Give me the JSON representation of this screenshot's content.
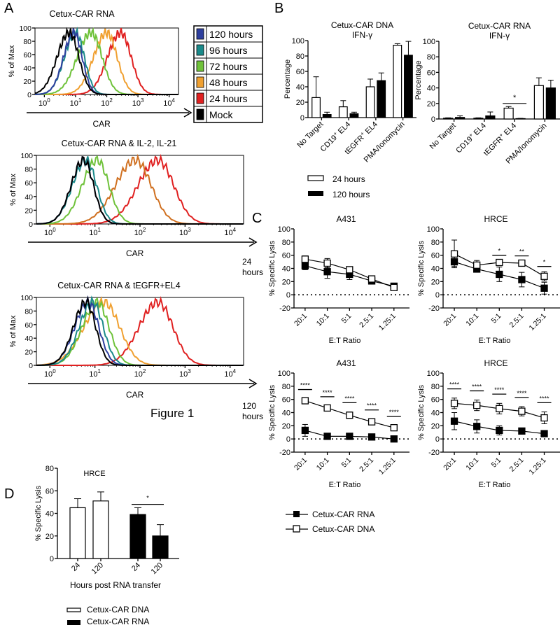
{
  "figure_label": "Figure 1",
  "panel_labels": {
    "A": "A",
    "B": "B",
    "C": "C",
    "D": "D"
  },
  "chart_data": [
    {
      "id": "A1",
      "type": "histogram-overlay",
      "title": "Cetux-CAR RNA",
      "xlabel": "CAR",
      "ylabel": "% of Max",
      "xscale": "log",
      "xlim_log10": [
        -0.3,
        4.3
      ],
      "yticks": [
        0,
        20,
        40,
        60,
        80,
        100
      ],
      "xticks": [
        "10^0",
        "10^1",
        "10^2",
        "10^3",
        "10^4"
      ],
      "series": [
        {
          "name": "Mock",
          "color": "#000000",
          "peak_log10": 0.8,
          "width": 0.35
        },
        {
          "name": "120 hours",
          "color": "#2e3f9e",
          "peak_log10": 0.95,
          "width": 0.3
        },
        {
          "name": "96 hours",
          "color": "#1a8a8a",
          "peak_log10": 1.0,
          "width": 0.32
        },
        {
          "name": "72 hours",
          "color": "#6fc23a",
          "peak_log10": 1.5,
          "width": 0.4
        },
        {
          "name": "48 hours",
          "color": "#f0a030",
          "peak_log10": 2.0,
          "width": 0.38
        },
        {
          "name": "24 hours",
          "color": "#e02020",
          "peak_log10": 2.45,
          "width": 0.38
        }
      ]
    },
    {
      "id": "A2",
      "type": "histogram-overlay",
      "title": "Cetux-CAR RNA & IL-2, IL-21",
      "xlabel": "CAR",
      "ylabel": "% of Max",
      "xscale": "log",
      "xlim_log10": [
        -0.3,
        4.3
      ],
      "yticks": [
        0,
        20,
        40,
        60,
        80,
        100
      ],
      "xticks": [
        "10^0",
        "10^1",
        "10^2",
        "10^3",
        "10^4"
      ],
      "series": [
        {
          "name": "Mock",
          "color": "#000000",
          "peak_log10": 0.75,
          "width": 0.25
        },
        {
          "name": "120 hours",
          "color": "#2e3f9e",
          "peak_log10": 0.75,
          "width": 0.25
        },
        {
          "name": "96 hours",
          "color": "#1a8a8a",
          "peak_log10": 0.8,
          "width": 0.27
        },
        {
          "name": "72 hours",
          "color": "#6fc23a",
          "peak_log10": 1.05,
          "width": 0.3
        },
        {
          "name": "48 hours",
          "color": "#d07020",
          "peak_log10": 1.9,
          "width": 0.4
        },
        {
          "name": "24 hours",
          "color": "#e02020",
          "peak_log10": 2.4,
          "width": 0.4
        }
      ]
    },
    {
      "id": "A3",
      "type": "histogram-overlay",
      "title": "Cetux-CAR RNA & tEGFR+EL4",
      "xlabel": "CAR",
      "ylabel": "% of Max",
      "xscale": "log",
      "xlim_log10": [
        -0.3,
        4.3
      ],
      "yticks": [
        0,
        20,
        40,
        60,
        80,
        100
      ],
      "xticks": [
        "10^0",
        "10^1",
        "10^2",
        "10^3",
        "10^4"
      ],
      "series": [
        {
          "name": "Mock",
          "color": "#000000",
          "peak_log10": 0.8,
          "width": 0.25
        },
        {
          "name": "120 hours",
          "color": "#2e3f9e",
          "peak_log10": 0.85,
          "width": 0.27
        },
        {
          "name": "96 hours",
          "color": "#1a8a8a",
          "peak_log10": 0.95,
          "width": 0.27
        },
        {
          "name": "72 hours",
          "color": "#6fc23a",
          "peak_log10": 1.05,
          "width": 0.3
        },
        {
          "name": "48 hours",
          "color": "#f0a030",
          "peak_log10": 1.2,
          "width": 0.4
        },
        {
          "name": "24 hours",
          "color": "#e02020",
          "peak_log10": 2.4,
          "width": 0.38
        }
      ]
    },
    {
      "id": "B1",
      "type": "bar",
      "title": "Cetux-CAR DNA",
      "subtitle": "IFN-γ",
      "ylabel": "Percentage",
      "ylim": [
        0,
        100
      ],
      "yticks": [
        0,
        20,
        40,
        60,
        80,
        100
      ],
      "categories": [
        "No Target",
        "CD19+ EL4",
        "tEGFR+ EL4",
        "PMA/Ionomycin"
      ],
      "series": [
        {
          "name": "24 hours",
          "values": [
            26,
            14,
            40,
            94
          ],
          "errors": [
            27,
            8,
            10,
            2
          ]
        },
        {
          "name": "120 hours",
          "values": [
            4,
            5,
            48,
            81
          ],
          "errors": [
            3,
            2,
            10,
            18
          ]
        }
      ],
      "annotations": []
    },
    {
      "id": "B2",
      "type": "bar",
      "title": "Cetux-CAR RNA",
      "subtitle": "IFN-γ",
      "ylabel": "Percentage",
      "ylim": [
        0,
        100
      ],
      "yticks": [
        0,
        20,
        40,
        60,
        80,
        100
      ],
      "categories": [
        "No Target",
        "CD19+ EL4",
        "tEGFR+ EL4",
        "PMA/Ionomycin"
      ],
      "series": [
        {
          "name": "24 hours",
          "values": [
            1,
            1,
            14,
            43
          ],
          "errors": [
            0.5,
            0.5,
            2,
            10
          ]
        },
        {
          "name": "120 hours",
          "values": [
            2,
            4,
            0.5,
            40
          ],
          "errors": [
            2,
            5,
            0.3,
            10
          ]
        }
      ],
      "annotations": [
        {
          "category": 2,
          "text": "*"
        }
      ]
    },
    {
      "id": "C1",
      "type": "line",
      "title": "A431",
      "row_label": "24 hours",
      "xlabel": "E:T Ratio",
      "ylabel": "% Specific Lysis",
      "ylim": [
        -20,
        100
      ],
      "yticks": [
        -20,
        0,
        20,
        40,
        60,
        80,
        100
      ],
      "x": [
        "20:1",
        "10:1",
        "5:1",
        "2.5:1",
        "1.25:1"
      ],
      "series": [
        {
          "name": "Cetux-CAR RNA",
          "values": [
            44,
            35,
            31,
            21,
            13
          ],
          "errors": [
            6,
            10,
            8,
            3,
            3
          ]
        },
        {
          "name": "Cetux-CAR DNA",
          "values": [
            54,
            48,
            38,
            24,
            11
          ],
          "errors": [
            5,
            7,
            3,
            3,
            3
          ]
        }
      ],
      "significance": [
        "",
        "",
        "",
        "",
        ""
      ]
    },
    {
      "id": "C2",
      "type": "line",
      "title": "HRCE",
      "xlabel": "E:T Ratio",
      "ylabel": "% Specific Lysis",
      "ylim": [
        -20,
        100
      ],
      "yticks": [
        -20,
        0,
        20,
        40,
        60,
        80,
        100
      ],
      "x": [
        "20:1",
        "10:1",
        "5:1",
        "2.5:1",
        "1.25:1"
      ],
      "series": [
        {
          "name": "Cetux-CAR RNA",
          "values": [
            50,
            39,
            31,
            23,
            10
          ],
          "errors": [
            7,
            4,
            11,
            11,
            9
          ]
        },
        {
          "name": "Cetux-CAR DNA",
          "values": [
            62,
            45,
            49,
            48,
            28
          ],
          "errors": [
            21,
            7,
            3,
            3,
            7
          ]
        }
      ],
      "significance": [
        "",
        "",
        "*",
        "**",
        "*"
      ]
    },
    {
      "id": "C3",
      "type": "line",
      "title": "A431",
      "row_label": "120 hours",
      "xlabel": "E:T Ratio",
      "ylabel": "% Specific Lysis",
      "ylim": [
        -20,
        100
      ],
      "yticks": [
        -20,
        0,
        20,
        40,
        60,
        80,
        100
      ],
      "x": [
        "20:1",
        "10:1",
        "5:1",
        "2.5:1",
        "1.25:1"
      ],
      "series": [
        {
          "name": "Cetux-CAR RNA",
          "values": [
            13,
            4,
            4,
            3,
            0
          ],
          "errors": [
            9,
            2,
            2,
            2,
            1
          ]
        },
        {
          "name": "Cetux-CAR DNA",
          "values": [
            58,
            47,
            36,
            26,
            17
          ],
          "errors": [
            3,
            3,
            5,
            4,
            3
          ]
        }
      ],
      "significance": [
        "****",
        "****",
        "****",
        "****",
        "****"
      ]
    },
    {
      "id": "C4",
      "type": "line",
      "title": "HRCE",
      "xlabel": "E:T Ratio",
      "ylabel": "% Specific Lysis",
      "ylim": [
        -20,
        100
      ],
      "yticks": [
        -20,
        0,
        20,
        40,
        60,
        80,
        100
      ],
      "x": [
        "20:1",
        "10:1",
        "5:1",
        "2.5:1",
        "1.25:1"
      ],
      "series": [
        {
          "name": "Cetux-CAR RNA",
          "values": [
            27,
            19,
            13,
            12,
            8
          ],
          "errors": [
            13,
            10,
            7,
            3,
            3
          ]
        },
        {
          "name": "Cetux-CAR DNA",
          "values": [
            54,
            51,
            46,
            42,
            32
          ],
          "errors": [
            8,
            8,
            8,
            7,
            9
          ]
        }
      ],
      "significance": [
        "****",
        "****",
        "****",
        "****",
        "****"
      ]
    },
    {
      "id": "D",
      "type": "bar",
      "title": "HRCE",
      "xlabel": "Hours post RNA transfer",
      "ylabel": "% Specific Lysis",
      "ylim": [
        0,
        80
      ],
      "yticks": [
        0,
        20,
        40,
        60,
        80
      ],
      "categories": [
        "24",
        "120",
        "24",
        "120"
      ],
      "groups": [
        "Cetux-CAR DNA",
        "Cetux-CAR DNA",
        "Cetux-CAR RNA",
        "Cetux-CAR RNA"
      ],
      "values": [
        45,
        51,
        39,
        20
      ],
      "errors": [
        8,
        8,
        6,
        10
      ],
      "annotations": [
        {
          "from": 2,
          "to": 3,
          "text": "*"
        }
      ]
    }
  ],
  "legends": {
    "A": [
      "120 hours",
      "96 hours",
      "72 hours",
      "48 hours",
      "24 hours",
      "Mock"
    ],
    "B": [
      "24 hours",
      "120 hours"
    ],
    "C": [
      "Cetux-CAR RNA",
      "Cetux-CAR DNA"
    ],
    "D": [
      "Cetux-CAR DNA",
      "Cetux-CAR RNA"
    ]
  }
}
